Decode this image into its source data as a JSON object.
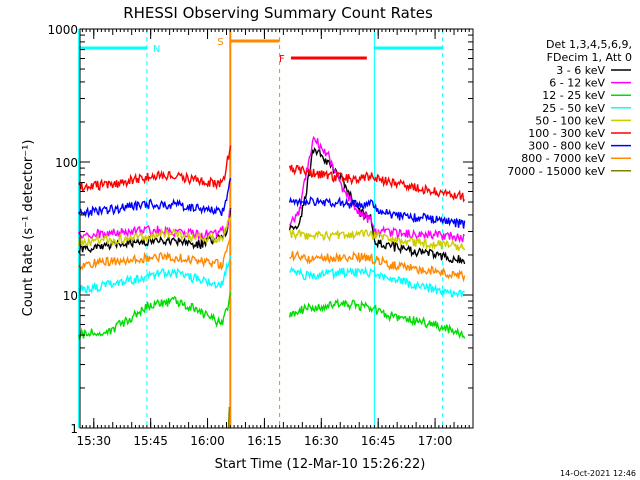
{
  "chart_data": {
    "type": "line",
    "title": "RHESSI Observing Summary Count Rates",
    "xlabel": "Start Time (12-Mar-10 15:26:22)",
    "ylabel": "Count Rate (s⁻¹ detector⁻¹)",
    "y_scale": "log",
    "ylim": [
      1,
      1000
    ],
    "y_ticks": [
      {
        "value": 1,
        "label": "1"
      },
      {
        "value": 10,
        "label": "10"
      },
      {
        "value": 100,
        "label": "100"
      },
      {
        "value": 1000,
        "label": "1000"
      }
    ],
    "xlim": [
      "15:26:22",
      "17:10:00"
    ],
    "x_ticks": [
      "15:30",
      "15:45",
      "16:00",
      "16:15",
      "16:30",
      "16:45",
      "17:00"
    ],
    "legend_header": [
      "Det 1,3,4,5,6,9,",
      "FDecim 1, Att 0"
    ],
    "legend_position": "right",
    "series": [
      {
        "name": "3 - 6 keV",
        "color": "#000000",
        "points": [
          [
            "15:26",
            22
          ],
          [
            "15:40",
            25
          ],
          [
            "15:48",
            26
          ],
          [
            "15:58",
            24
          ],
          [
            "16:05",
            28
          ],
          [
            "16:07",
            60
          ],
          [
            "16:22",
            31
          ],
          [
            "16:24",
            32
          ],
          [
            "16:26",
            60
          ],
          [
            "16:28",
            125
          ],
          [
            "16:32",
            100
          ],
          [
            "16:36",
            70
          ],
          [
            "16:40",
            42
          ],
          [
            "16:43",
            38
          ],
          [
            "16:44",
            25
          ],
          [
            "16:52",
            22
          ],
          [
            "17:00",
            20
          ],
          [
            "17:08",
            18
          ]
        ]
      },
      {
        "name": "6 - 12 keV",
        "color": "#ff00ff",
        "points": [
          [
            "15:26",
            28
          ],
          [
            "15:40",
            30
          ],
          [
            "15:48",
            31
          ],
          [
            "15:58",
            28
          ],
          [
            "16:05",
            31
          ],
          [
            "16:07",
            65
          ],
          [
            "16:22",
            35
          ],
          [
            "16:24",
            40
          ],
          [
            "16:26",
            80
          ],
          [
            "16:28",
            155
          ],
          [
            "16:32",
            110
          ],
          [
            "16:36",
            60
          ],
          [
            "16:40",
            42
          ],
          [
            "16:43",
            36
          ],
          [
            "16:44",
            30
          ],
          [
            "16:52",
            29
          ],
          [
            "17:00",
            28
          ],
          [
            "17:08",
            27
          ]
        ]
      },
      {
        "name": "12 - 25 keV",
        "color": "#00dd00",
        "points": [
          [
            "15:26",
            5
          ],
          [
            "15:35",
            5.5
          ],
          [
            "15:45",
            8.5
          ],
          [
            "15:52",
            9
          ],
          [
            "15:58",
            7.5
          ],
          [
            "16:04",
            6
          ],
          [
            "16:06",
            10
          ],
          [
            "16:22",
            7
          ],
          [
            "16:26",
            8
          ],
          [
            "16:32",
            8.5
          ],
          [
            "16:38",
            8.5
          ],
          [
            "16:43",
            8
          ],
          [
            "16:48",
            7
          ],
          [
            "17:00",
            6
          ],
          [
            "17:08",
            5
          ]
        ]
      },
      {
        "name": "25 - 50 keV",
        "color": "#00ffff",
        "points": [
          [
            "15:26",
            11
          ],
          [
            "15:35",
            12
          ],
          [
            "15:45",
            14
          ],
          [
            "15:50",
            15
          ],
          [
            "15:58",
            13
          ],
          [
            "16:04",
            12
          ],
          [
            "16:06",
            20
          ],
          [
            "16:22",
            15
          ],
          [
            "16:26",
            14
          ],
          [
            "16:32",
            14.5
          ],
          [
            "16:38",
            15
          ],
          [
            "16:43",
            14.5
          ],
          [
            "16:48",
            13
          ],
          [
            "17:00",
            11
          ],
          [
            "17:08",
            10
          ]
        ]
      },
      {
        "name": "50 - 100 keV",
        "color": "#cccc00",
        "points": [
          [
            "15:26",
            25
          ],
          [
            "15:35",
            26
          ],
          [
            "15:45",
            28
          ],
          [
            "15:50",
            29
          ],
          [
            "15:58",
            27
          ],
          [
            "16:04",
            26
          ],
          [
            "16:06",
            40
          ],
          [
            "16:22",
            29
          ],
          [
            "16:26",
            28
          ],
          [
            "16:32",
            28
          ],
          [
            "16:38",
            29
          ],
          [
            "16:43",
            29
          ],
          [
            "16:48",
            26
          ],
          [
            "17:00",
            24
          ],
          [
            "17:08",
            23
          ]
        ]
      },
      {
        "name": "100 - 300 keV",
        "color": "#ff0000",
        "points": [
          [
            "15:26",
            65
          ],
          [
            "15:35",
            68
          ],
          [
            "15:45",
            78
          ],
          [
            "15:50",
            80
          ],
          [
            "15:58",
            72
          ],
          [
            "16:04",
            68
          ],
          [
            "16:06",
            130
          ],
          [
            "16:22",
            90
          ],
          [
            "16:26",
            85
          ],
          [
            "16:32",
            78
          ],
          [
            "16:38",
            75
          ],
          [
            "16:43",
            78
          ],
          [
            "16:48",
            70
          ],
          [
            "17:00",
            60
          ],
          [
            "17:08",
            55
          ]
        ]
      },
      {
        "name": "300 - 800 keV",
        "color": "#0000ff",
        "points": [
          [
            "15:26",
            42
          ],
          [
            "15:35",
            44
          ],
          [
            "15:45",
            48
          ],
          [
            "15:50",
            48
          ],
          [
            "15:58",
            45
          ],
          [
            "16:04",
            42
          ],
          [
            "16:06",
            70
          ],
          [
            "16:22",
            52
          ],
          [
            "16:26",
            50
          ],
          [
            "16:32",
            50
          ],
          [
            "16:38",
            48
          ],
          [
            "16:43",
            48
          ],
          [
            "16:48",
            40
          ],
          [
            "17:00",
            37
          ],
          [
            "17:08",
            34
          ]
        ]
      },
      {
        "name": "800 - 7000 keV",
        "color": "#ff8800",
        "points": [
          [
            "15:26",
            17
          ],
          [
            "15:35",
            18
          ],
          [
            "15:45",
            19
          ],
          [
            "15:50",
            19.5
          ],
          [
            "15:58",
            18
          ],
          [
            "16:04",
            17
          ],
          [
            "16:06",
            27
          ],
          [
            "16:22",
            20
          ],
          [
            "16:26",
            19
          ],
          [
            "16:32",
            19
          ],
          [
            "16:38",
            19.5
          ],
          [
            "16:43",
            19
          ],
          [
            "16:48",
            17
          ],
          [
            "17:00",
            15
          ],
          [
            "17:08",
            14
          ]
        ]
      },
      {
        "name": "7000 - 15000 keV",
        "color": "#808000",
        "points": [
          [
            "16:05:30",
            1
          ],
          [
            "16:06",
            2
          ]
        ]
      }
    ],
    "annotations": {
      "night": [
        [
          "15:26",
          "15:44"
        ],
        [
          "16:44",
          "17:02"
        ]
      ],
      "night_label": "N",
      "saa": [
        [
          "16:06",
          "16:19"
        ]
      ],
      "saa_label": "S",
      "flare": [
        [
          "16:22",
          "16:42"
        ]
      ],
      "flare_label": "F",
      "colors": {
        "night": "#00ffff",
        "saa": "#ff8800",
        "flare": "#ff0000"
      }
    },
    "timestamp": "14-Oct-2021 12:46"
  }
}
